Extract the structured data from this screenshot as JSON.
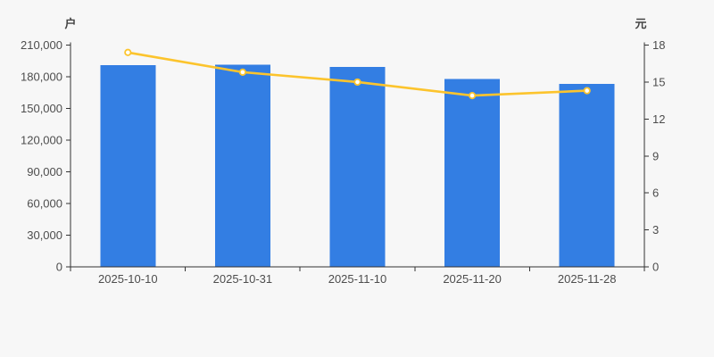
{
  "page": {
    "background_color": "#f7f7f7"
  },
  "chart_data": {
    "type": "bar+line",
    "title": "",
    "legend_visible": false,
    "grid": false,
    "categories": [
      "2025-10-10",
      "2025-10-31",
      "2025-11-10",
      "2025-11-20",
      "2025-11-28"
    ],
    "series": [
      {
        "name": "户",
        "type": "bar",
        "axis": "left",
        "color": "#337ee3",
        "values": [
          190800,
          191300,
          189100,
          177800,
          173300
        ]
      },
      {
        "name": "元",
        "type": "line",
        "axis": "right",
        "color": "#fcc42d",
        "marker_fill": "#ffffff",
        "values": [
          17.4,
          15.8,
          15.0,
          13.9,
          14.3
        ]
      }
    ],
    "left_axis": {
      "unit_label": "户",
      "min": 0,
      "max": 210000,
      "tick_interval": 30000,
      "tick_labels": [
        "0",
        "30,000",
        "60,000",
        "90,000",
        "120,000",
        "150,000",
        "180,000",
        "210,000"
      ]
    },
    "right_axis": {
      "unit_label": "元",
      "min": 0,
      "max": 18,
      "tick_interval": 3,
      "tick_labels": [
        "0",
        "3",
        "6",
        "9",
        "12",
        "15",
        "18"
      ]
    },
    "axis_color": "#333333",
    "tick_text_color": "#4d4d4d"
  }
}
